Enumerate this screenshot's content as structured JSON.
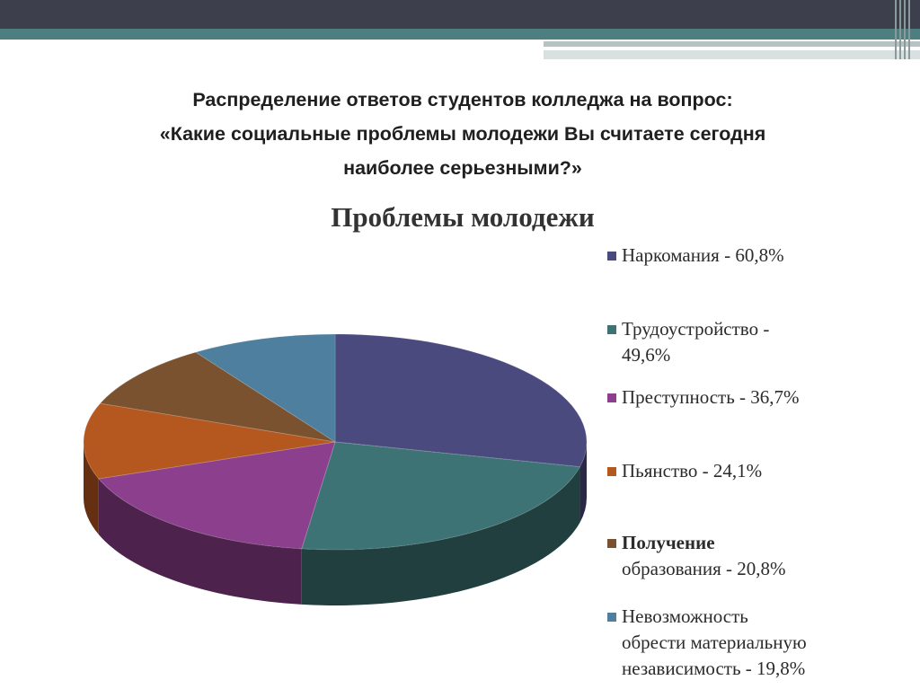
{
  "slide": {
    "title_lines": [
      "Распределение ответов студентов колледжа на вопрос:",
      "«Какие социальные проблемы молодежи Вы считаете сегодня",
      "наиболее серьезными?»"
    ]
  },
  "chart_data": {
    "type": "pie",
    "title": "Проблемы молодежи",
    "categories": [
      "Наркомания",
      "Трудоустройство",
      "Преступность",
      "Пьянство",
      "Получение образования",
      "Невозможность обрести материальную независимость"
    ],
    "values": [
      60.8,
      49.6,
      36.7,
      24.1,
      20.8,
      19.8
    ],
    "unit": "%",
    "legend_position": "right",
    "three_d": true,
    "colors": [
      "#4b4a7e",
      "#3d7374",
      "#8c3f8c",
      "#b5581f",
      "#7a5230",
      "#4e7f9e"
    ],
    "legend": [
      {
        "lines": [
          "Наркомания - 60,8%"
        ],
        "bold_first": false
      },
      {
        "lines": [
          "Трудоустройство -",
          "49,6%"
        ],
        "bold_first": false
      },
      {
        "lines": [
          "Преступность - 36,7%"
        ],
        "bold_first": false
      },
      {
        "lines": [
          "Пьянство - 24,1%"
        ],
        "bold_first": false
      },
      {
        "lines": [
          "Получение",
          "образования - 20,8%"
        ],
        "bold_first": true
      },
      {
        "lines": [
          "Невозможность",
          "обрести материальную",
          "независимость - 19,8%"
        ],
        "bold_first": false
      }
    ]
  }
}
